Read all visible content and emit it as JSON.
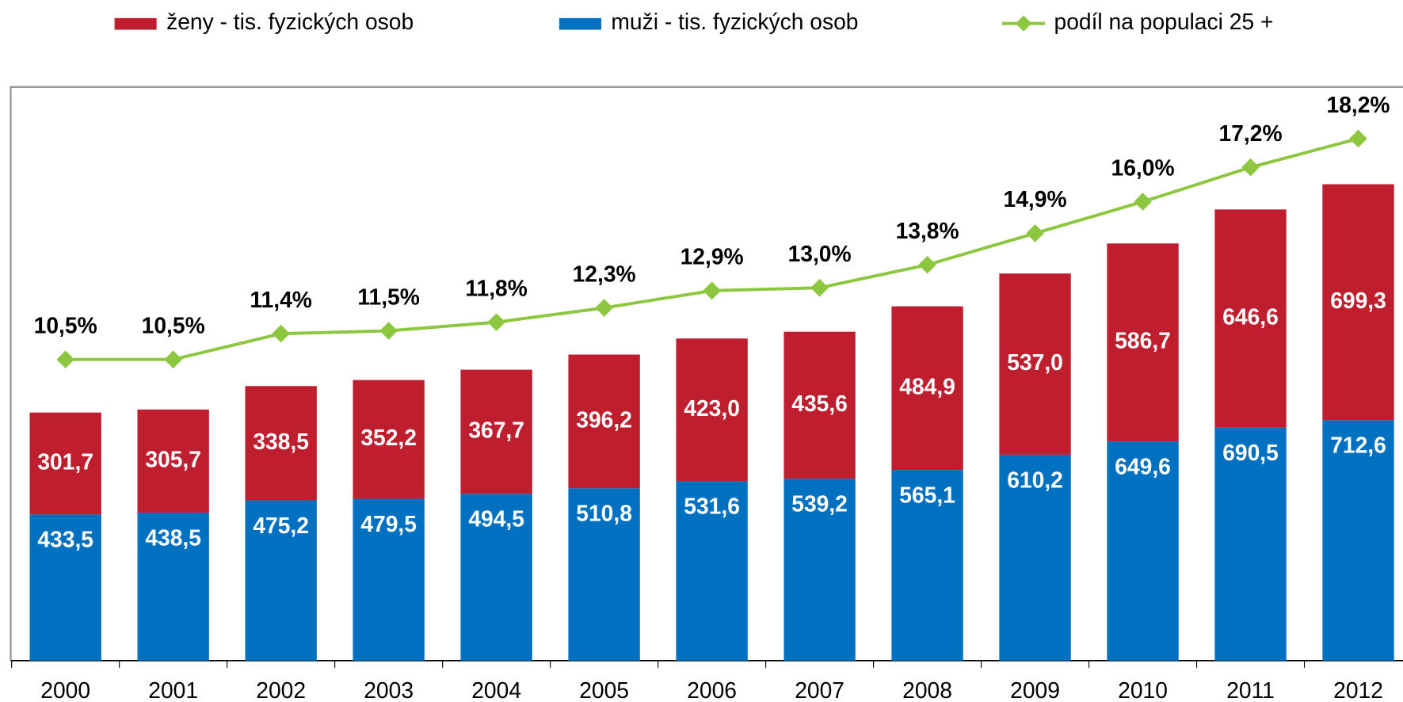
{
  "chart_data": {
    "type": "bar",
    "categories": [
      "2000",
      "2001",
      "2002",
      "2003",
      "2004",
      "2005",
      "2006",
      "2007",
      "2008",
      "2009",
      "2010",
      "2011",
      "2012"
    ],
    "stacked": true,
    "ylim": [
      0,
      1700
    ],
    "y2lim": [
      0,
      20
    ],
    "series": [
      {
        "name": "muži - tis. fyzických osob",
        "color": "#0070c0",
        "values": [
          433.5,
          438.5,
          475.2,
          479.5,
          494.5,
          510.8,
          531.6,
          539.2,
          565.1,
          610.2,
          649.6,
          690.5,
          712.6
        ],
        "value_labels": [
          "433,5",
          "438,5",
          "475,2",
          "479,5",
          "494,5",
          "510,8",
          "531,6",
          "539,2",
          "565,1",
          "610,2",
          "649,6",
          "690,5",
          "712,6"
        ]
      },
      {
        "name": "ženy - tis. fyzických osob",
        "color": "#be1e2d",
        "values": [
          301.7,
          305.7,
          338.5,
          352.2,
          367.7,
          396.2,
          423.0,
          435.6,
          484.9,
          537.0,
          586.7,
          646.6,
          699.3
        ],
        "value_labels": [
          "301,7",
          "305,7",
          "338,5",
          "352,2",
          "367,7",
          "396,2",
          "423,0",
          "435,6",
          "484,9",
          "537,0",
          "586,7",
          "646,6",
          "699,3"
        ]
      },
      {
        "name": "podíl na populaci 25 +",
        "color": "#8dc63f",
        "type": "line",
        "axis": "y2",
        "values": [
          10.5,
          10.5,
          11.4,
          11.5,
          11.8,
          12.3,
          12.9,
          13.0,
          13.8,
          14.9,
          16.0,
          17.2,
          18.2
        ],
        "value_labels": [
          "10,5%",
          "10,5%",
          "11,4%",
          "11,5%",
          "11,8%",
          "12,3%",
          "12,9%",
          "13,0%",
          "13,8%",
          "14,9%",
          "16,0%",
          "17,2%",
          "18,2%"
        ]
      }
    ]
  }
}
